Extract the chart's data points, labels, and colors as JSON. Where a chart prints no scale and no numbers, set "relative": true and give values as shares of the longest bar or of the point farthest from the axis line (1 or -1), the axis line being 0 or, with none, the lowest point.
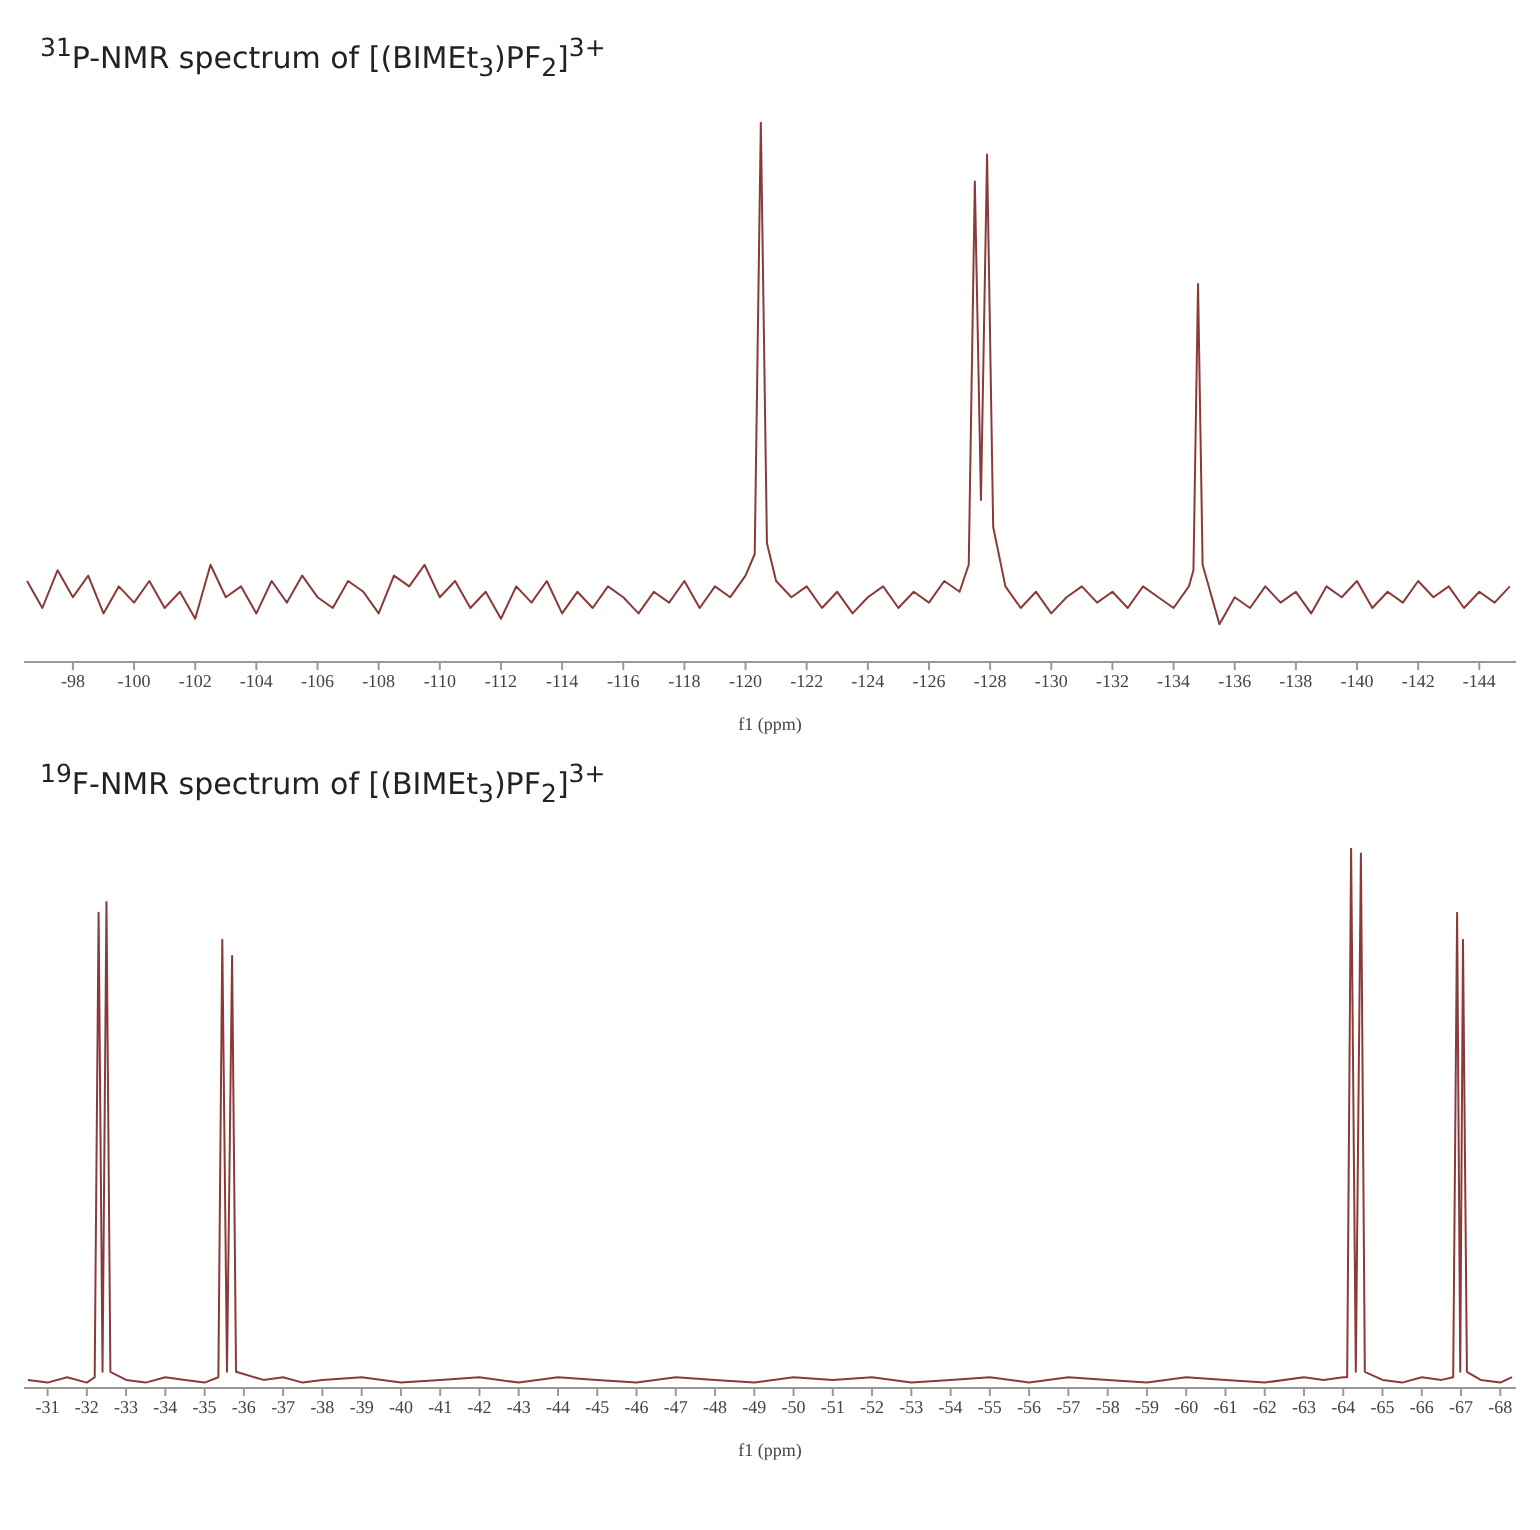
{
  "chart_data": [
    {
      "type": "line",
      "title": "$^{31}$P-NMR spectrum of [(BIMEt$_{3}$)PF$_{2}$]$^{3+}$",
      "xlabel": "f1 (ppm)",
      "relative": true,
      "marker": "none",
      "xlim": [
        -96.4,
        -145.2
      ],
      "xticks": [
        -98,
        -100,
        -102,
        -104,
        -106,
        -108,
        -110,
        -112,
        -114,
        -116,
        -118,
        -120,
        -122,
        -124,
        -126,
        -128,
        -130,
        -132,
        -134,
        -136,
        -138,
        -140,
        -142,
        -144
      ],
      "x": [
        -96.5,
        -97,
        -97.5,
        -98,
        -98.5,
        -99,
        -99.5,
        -100,
        -100.5,
        -101,
        -101.5,
        -102,
        -102.5,
        -103,
        -103.5,
        -104,
        -104.5,
        -105,
        -105.5,
        -106,
        -106.5,
        -107,
        -107.5,
        -108,
        -108.5,
        -109,
        -109.5,
        -110,
        -110.5,
        -111,
        -111.5,
        -112,
        -112.5,
        -113,
        -113.5,
        -114,
        -114.5,
        -115,
        -115.5,
        -116,
        -116.5,
        -117,
        -117.5,
        -118,
        -118.5,
        -119,
        -119.5,
        -120,
        -120.3,
        -120.5,
        -120.7,
        -121,
        -121.5,
        -122,
        -122.5,
        -123,
        -123.5,
        -124,
        -124.5,
        -125,
        -125.5,
        -126,
        -126.5,
        -127,
        -127.3,
        -127.5,
        -127.7,
        -127.9,
        -128.1,
        -128.5,
        -129,
        -129.5,
        -130,
        -130.5,
        -131,
        -131.5,
        -132,
        -132.5,
        -133,
        -133.5,
        -134,
        -134.5,
        -134.65,
        -134.8,
        -134.95,
        -135.5,
        -136,
        -136.5,
        -137,
        -137.5,
        -138,
        -138.5,
        -139,
        -139.5,
        -140,
        -140.5,
        -141,
        -141.5,
        -142,
        -142.5,
        -143,
        -143.5,
        -144,
        -144.5,
        -145
      ],
      "series": [
        {
          "color": "#8b3a3a",
          "values": [
            0.15,
            0.1,
            0.17,
            0.12,
            0.16,
            0.09,
            0.14,
            0.11,
            0.15,
            0.1,
            0.13,
            0.08,
            0.18,
            0.12,
            0.14,
            0.09,
            0.15,
            0.11,
            0.16,
            0.12,
            0.1,
            0.15,
            0.13,
            0.09,
            0.16,
            0.14,
            0.18,
            0.12,
            0.15,
            0.1,
            0.13,
            0.08,
            0.14,
            0.11,
            0.15,
            0.09,
            0.13,
            0.1,
            0.14,
            0.12,
            0.09,
            0.13,
            0.11,
            0.15,
            0.1,
            0.14,
            0.12,
            0.16,
            0.2,
            1,
            0.22,
            0.15,
            0.12,
            0.14,
            0.1,
            0.13,
            0.09,
            0.12,
            0.14,
            0.1,
            0.13,
            0.11,
            0.15,
            0.13,
            0.18,
            0.89,
            0.3,
            0.94,
            0.25,
            0.14,
            0.1,
            0.13,
            0.09,
            0.12,
            0.14,
            0.11,
            0.13,
            0.1,
            0.14,
            0.12,
            0.1,
            0.14,
            0.17,
            0.7,
            0.18,
            0.07,
            0.12,
            0.1,
            0.14,
            0.11,
            0.13,
            0.09,
            0.14,
            0.12,
            0.15,
            0.1,
            0.13,
            0.11,
            0.15,
            0.12,
            0.14,
            0.1,
            0.13,
            0.11,
            0.14
          ]
        }
      ]
    },
    {
      "type": "line",
      "title": "$^{19}$F-NMR spectrum of [(BIMEt$_{3}$)PF$_{2}$]$^{3+}$",
      "xlabel": "f1 (ppm)",
      "relative": true,
      "marker": "none",
      "xlim": [
        -30.4,
        -68.4
      ],
      "xticks": [
        -31,
        -32,
        -33,
        -34,
        -35,
        -36,
        -37,
        -38,
        -39,
        -40,
        -41,
        -42,
        -43,
        -44,
        -45,
        -46,
        -47,
        -48,
        -49,
        -50,
        -51,
        -52,
        -53,
        -54,
        -55,
        -56,
        -57,
        -58,
        -59,
        -60,
        -61,
        -62,
        -63,
        -64,
        -65,
        -66,
        -67,
        -68
      ],
      "x": [
        -30.5,
        -31,
        -31.5,
        -32,
        -32.2,
        -32.3,
        -32.4,
        -32.5,
        -32.6,
        -33,
        -33.5,
        -34,
        -34.5,
        -35,
        -35.35,
        -35.45,
        -35.57,
        -35.7,
        -35.8,
        -36.5,
        -37,
        -37.5,
        -38,
        -39,
        -40,
        -41,
        -42,
        -43,
        -44,
        -45,
        -46,
        -47,
        -48,
        -49,
        -50,
        -51,
        -52,
        -53,
        -54,
        -55,
        -56,
        -57,
        -58,
        -59,
        -60,
        -61,
        -62,
        -63,
        -63.5,
        -64,
        -64.1,
        -64.2,
        -64.32,
        -64.45,
        -64.55,
        -65,
        -65.5,
        -66,
        -66.5,
        -66.8,
        -66.9,
        -66.98,
        -67.05,
        -67.15,
        -67.5,
        -68,
        -68.3
      ],
      "series": [
        {
          "color": "#8b3a3a",
          "values": [
            0.015,
            0.01,
            0.02,
            0.01,
            0.02,
            0.88,
            0.03,
            0.9,
            0.03,
            0.015,
            0.01,
            0.02,
            0.015,
            0.01,
            0.02,
            0.83,
            0.03,
            0.8,
            0.03,
            0.015,
            0.02,
            0.01,
            0.015,
            0.02,
            0.01,
            0.015,
            0.02,
            0.01,
            0.02,
            0.015,
            0.01,
            0.02,
            0.015,
            0.01,
            0.02,
            0.015,
            0.02,
            0.01,
            0.015,
            0.02,
            0.01,
            0.02,
            0.015,
            0.01,
            0.02,
            0.015,
            0.01,
            0.02,
            0.015,
            0.02,
            0.02,
            1,
            0.03,
            0.99,
            0.03,
            0.015,
            0.01,
            0.02,
            0.015,
            0.02,
            0.88,
            0.03,
            0.83,
            0.03,
            0.015,
            0.01,
            0.02
          ]
        }
      ]
    }
  ]
}
